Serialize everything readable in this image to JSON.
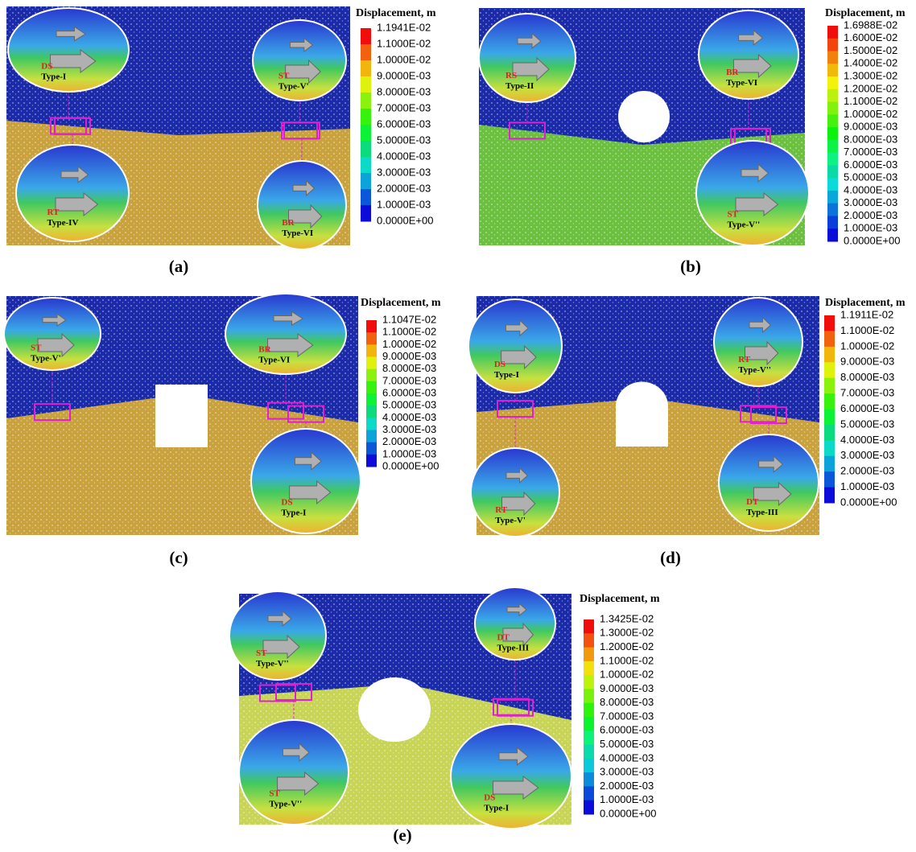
{
  "panels": [
    {
      "label": "(a)",
      "legend_title": "Displacement, m",
      "legend_ticks": [
        "1.1941E-02",
        "1.1000E-02",
        "1.0000E-02",
        "9.0000E-03",
        "8.0000E-03",
        "7.0000E-03",
        "6.0000E-03",
        "5.0000E-03",
        "4.0000E-03",
        "3.0000E-03",
        "2.0000E-03",
        "1.0000E-03",
        "0.0000E+00"
      ],
      "insets": [
        {
          "code": "DS",
          "type": "Type-I"
        },
        {
          "code": "ST",
          "type": "Type-V'"
        },
        {
          "code": "RT",
          "type": "Type-IV"
        },
        {
          "code": "BR",
          "type": "Type-VI"
        }
      ]
    },
    {
      "label": "(b)",
      "legend_title": "Displacement, m",
      "legend_ticks": [
        "1.6988E-02",
        "1.6000E-02",
        "1.5000E-02",
        "1.4000E-02",
        "1.3000E-02",
        "1.2000E-02",
        "1.1000E-02",
        "1.0000E-02",
        "9.0000E-03",
        "8.0000E-03",
        "7.0000E-03",
        "6.0000E-03",
        "5.0000E-03",
        "4.0000E-03",
        "3.0000E-03",
        "2.0000E-03",
        "1.0000E-03",
        "0.0000E+00"
      ],
      "insets": [
        {
          "code": "RS",
          "type": "Type-II"
        },
        {
          "code": "BR",
          "type": "Type-VI"
        },
        {
          "code": "ST",
          "type": "Type-V''"
        }
      ]
    },
    {
      "label": "(c)",
      "legend_title": "Displacement, m",
      "legend_ticks": [
        "1.1047E-02",
        "1.1000E-02",
        "1.0000E-02",
        "9.0000E-03",
        "8.0000E-03",
        "7.0000E-03",
        "6.0000E-03",
        "5.0000E-03",
        "4.0000E-03",
        "3.0000E-03",
        "2.0000E-03",
        "1.0000E-03",
        "0.0000E+00"
      ],
      "insets": [
        {
          "code": "ST",
          "type": "Type-V'"
        },
        {
          "code": "BR",
          "type": "Type-VI"
        },
        {
          "code": "DS",
          "type": "Type-I"
        }
      ]
    },
    {
      "label": "(d)",
      "legend_title": "Displacement, m",
      "legend_ticks": [
        "1.1911E-02",
        "1.1000E-02",
        "1.0000E-02",
        "9.0000E-03",
        "8.0000E-03",
        "7.0000E-03",
        "6.0000E-03",
        "5.0000E-03",
        "4.0000E-03",
        "3.0000E-03",
        "2.0000E-03",
        "1.0000E-03",
        "0.0000E+00"
      ],
      "insets": [
        {
          "code": "DS",
          "type": "Type-I"
        },
        {
          "code": "RT",
          "type": "Type-V''"
        },
        {
          "code": "RT",
          "type": "Type-V'"
        },
        {
          "code": "DT",
          "type": "Type-III"
        }
      ]
    },
    {
      "label": "(e)",
      "legend_title": "Displacement, m",
      "legend_ticks": [
        "1.3425E-02",
        "1.3000E-02",
        "1.2000E-02",
        "1.1000E-02",
        "1.0000E-02",
        "9.0000E-03",
        "8.0000E-03",
        "7.0000E-03",
        "6.0000E-03",
        "5.0000E-03",
        "4.0000E-03",
        "3.0000E-03",
        "2.0000E-03",
        "1.0000E-03",
        "0.0000E+00"
      ],
      "insets": [
        {
          "code": "ST",
          "type": "Type-V''"
        },
        {
          "code": "DT",
          "type": "Type-III"
        },
        {
          "code": "ST",
          "type": "Type-V''"
        },
        {
          "code": "DS",
          "type": "Type-I"
        }
      ]
    }
  ]
}
